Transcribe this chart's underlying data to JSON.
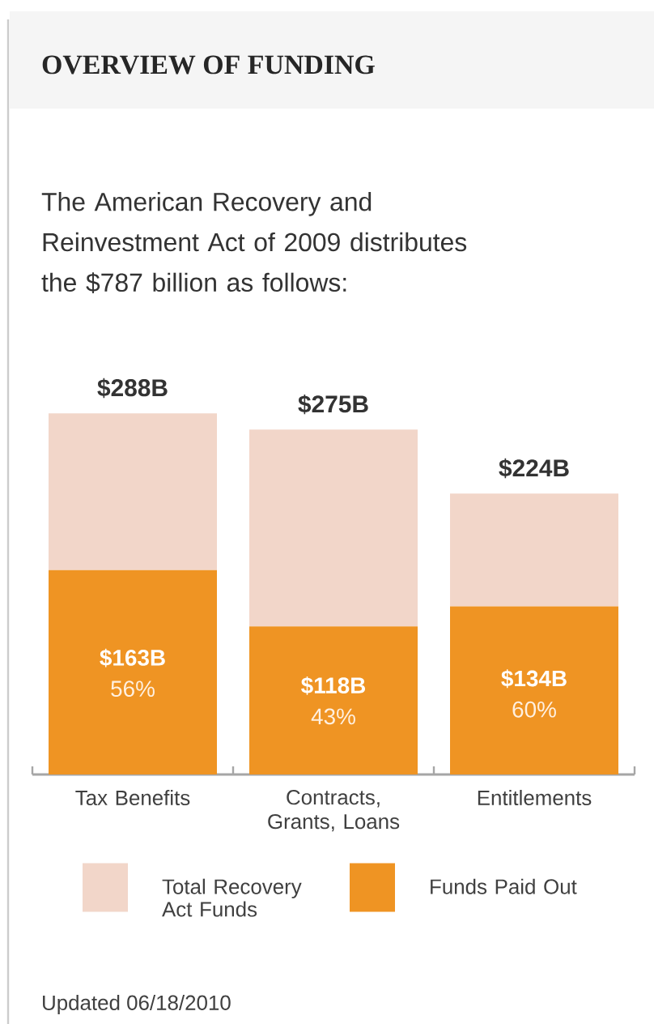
{
  "chart_data": {
    "type": "bar",
    "stacked": true,
    "title": "OVERVIEW OF FUNDING",
    "subtitle": "The American Recovery and Reinvestment Act of 2009 distributes the $787 billion as follows:",
    "categories": [
      "Tax Benefits",
      "Contracts, Grants, Loans",
      "Entitlements"
    ],
    "series": [
      {
        "name": "Funds Paid Out",
        "color": "#ef9423",
        "values": [
          163,
          118,
          134
        ],
        "value_labels": [
          "$163B",
          "$118B",
          "$134B"
        ]
      },
      {
        "name": "Total Recovery Act Funds",
        "color": "#f2d6c9",
        "values": [
          125,
          157,
          90
        ]
      }
    ],
    "totals": [
      "$288B",
      "$275B",
      "$224B"
    ],
    "annotations": [
      "56%",
      "43%",
      "60%",
      "Updated 06/18/2010"
    ],
    "legend": "bottom"
  }
}
